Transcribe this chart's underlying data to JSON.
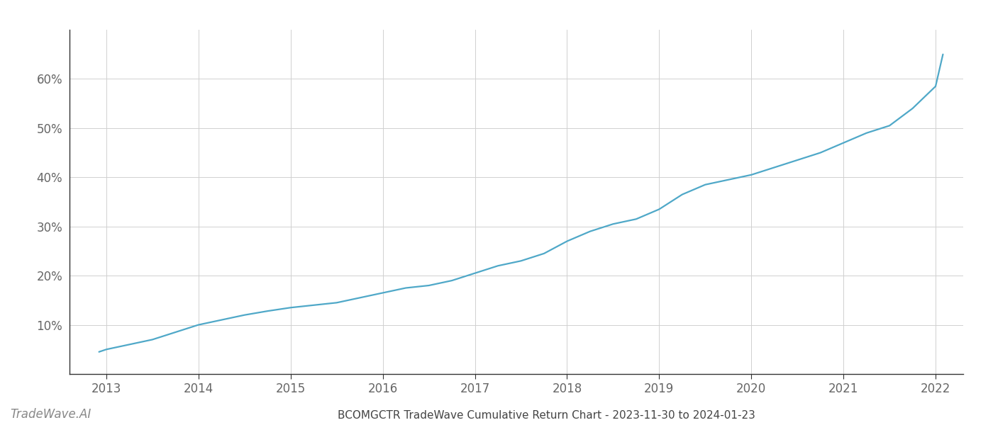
{
  "title": "BCOMGCTR TradeWave Cumulative Return Chart - 2023-11-30 to 2024-01-23",
  "watermark": "TradeWave.AI",
  "line_color": "#4fa8c8",
  "background_color": "#ffffff",
  "grid_color": "#d0d0d0",
  "x_years": [
    2013,
    2014,
    2015,
    2016,
    2017,
    2018,
    2019,
    2020,
    2021,
    2022
  ],
  "x_values": [
    2012.92,
    2013.0,
    2013.25,
    2013.5,
    2013.75,
    2014.0,
    2014.25,
    2014.5,
    2014.75,
    2015.0,
    2015.25,
    2015.5,
    2015.75,
    2016.0,
    2016.25,
    2016.5,
    2016.75,
    2017.0,
    2017.25,
    2017.5,
    2017.75,
    2018.0,
    2018.25,
    2018.5,
    2018.75,
    2019.0,
    2019.25,
    2019.5,
    2019.75,
    2020.0,
    2020.25,
    2020.5,
    2020.75,
    2021.0,
    2021.25,
    2021.5,
    2021.75,
    2022.0,
    2022.08
  ],
  "y_values": [
    4.5,
    5.0,
    6.0,
    7.0,
    8.5,
    10.0,
    11.0,
    12.0,
    12.8,
    13.5,
    14.0,
    14.5,
    15.5,
    16.5,
    17.5,
    18.0,
    19.0,
    20.5,
    22.0,
    23.0,
    24.5,
    27.0,
    29.0,
    30.5,
    31.5,
    33.5,
    36.5,
    38.5,
    39.5,
    40.5,
    42.0,
    43.5,
    45.0,
    47.0,
    49.0,
    50.5,
    54.0,
    58.5,
    65.0
  ],
  "ylim": [
    0,
    70
  ],
  "yticks": [
    10,
    20,
    30,
    40,
    50,
    60
  ],
  "xlim": [
    2012.6,
    2022.3
  ],
  "line_width": 1.6,
  "title_fontsize": 11,
  "watermark_fontsize": 12,
  "tick_fontsize": 12,
  "title_color": "#444444",
  "tick_color": "#666666",
  "axis_color": "#333333",
  "spine_color": "#333333"
}
